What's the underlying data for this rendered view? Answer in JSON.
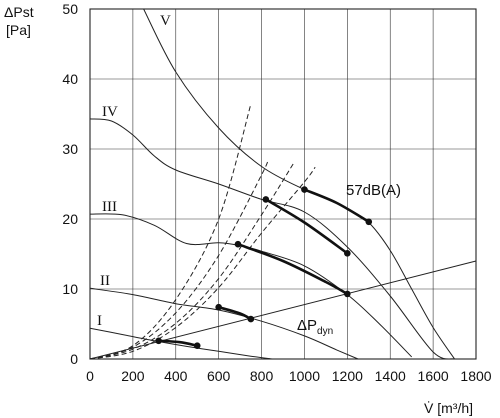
{
  "chart_data": {
    "type": "line",
    "title": "",
    "xlabel": "V̇ [m³/h]",
    "ylabel_line1": "ΔPst",
    "ylabel_line2": "[Pa]",
    "xlim": [
      0,
      1800
    ],
    "ylim": [
      0,
      50
    ],
    "x_ticks": [
      "0",
      "200",
      "400",
      "600",
      "800",
      "1000",
      "1200",
      "1400",
      "1600",
      "1800"
    ],
    "y_ticks": [
      "0",
      "10",
      "20",
      "30",
      "40",
      "50"
    ],
    "grid": true,
    "fan_curves": [
      {
        "name": "I",
        "x": [
          0,
          150,
          300,
          450,
          600,
          750,
          850
        ],
        "y": [
          4.4,
          3.5,
          2.6,
          1.8,
          1.1,
          0.4,
          0
        ]
      },
      {
        "name": "II",
        "x": [
          0,
          200,
          400,
          600,
          800,
          1000,
          1150,
          1250
        ],
        "y": [
          10.1,
          9.2,
          7.9,
          7.0,
          5.4,
          3.3,
          1.3,
          0
        ]
      },
      {
        "name": "III",
        "x": [
          0,
          150,
          300,
          450,
          600,
          700,
          800,
          1000,
          1200,
          1350,
          1500
        ],
        "y": [
          20.7,
          20.6,
          19.1,
          16.5,
          16.6,
          16.2,
          15.4,
          13.3,
          9.2,
          5.0,
          0.3
        ]
      },
      {
        "name": "IV",
        "x": [
          0,
          100,
          200,
          300,
          400,
          600,
          800,
          1000,
          1200,
          1400,
          1600,
          1700
        ],
        "y": [
          34.3,
          34.0,
          32.0,
          29.0,
          27.0,
          25.0,
          22.8,
          21.0,
          16.0,
          9.0,
          1.0,
          0
        ]
      },
      {
        "name": "V",
        "x": [
          250,
          400,
          600,
          800,
          1000,
          1100,
          1200,
          1300,
          1400,
          1500,
          1600,
          1700
        ],
        "y": [
          50,
          41,
          33,
          27.5,
          24.2,
          23.0,
          21.5,
          19.5,
          15.5,
          10.0,
          4.5,
          0
        ]
      }
    ],
    "system_curves": [
      {
        "x": [
          0,
          200,
          400,
          600,
          750
        ],
        "y": [
          0,
          1.9,
          8.5,
          20,
          36.4
        ]
      },
      {
        "x": [
          0,
          200,
          400,
          600,
          800,
          830
        ],
        "y": [
          0,
          1.7,
          6.6,
          14.8,
          26.3,
          28.5
        ]
      },
      {
        "x": [
          0,
          200,
          400,
          600,
          800,
          950
        ],
        "y": [
          0,
          1.4,
          5.1,
          11.5,
          20.6,
          28.0
        ]
      },
      {
        "x": [
          0,
          200,
          400,
          600,
          800,
          1000,
          1050
        ],
        "y": [
          0,
          1.1,
          4.5,
          10.2,
          18.0,
          25.3,
          27.4
        ]
      }
    ],
    "dynamic_pressure": {
      "name": "ΔPdyn",
      "x": [
        0,
        1800
      ],
      "y": [
        0,
        14
      ]
    },
    "operating_ranges": [
      {
        "x": [
          320,
          420,
          500
        ],
        "y": [
          2.6,
          2.4,
          1.9
        ]
      },
      {
        "x": [
          600,
          700,
          750
        ],
        "y": [
          7.4,
          6.5,
          5.7
        ]
      },
      {
        "x": [
          690,
          900,
          1100,
          1200
        ],
        "y": [
          16.4,
          14.0,
          11.0,
          9.3
        ]
      },
      {
        "x": [
          820,
          1000,
          1200
        ],
        "y": [
          22.8,
          19.5,
          15.1
        ]
      },
      {
        "x": [
          1000,
          1150,
          1300
        ],
        "y": [
          24.2,
          22.3,
          19.6
        ]
      }
    ],
    "operating_points": [
      {
        "x": 320,
        "y": 2.6
      },
      {
        "x": 500,
        "y": 1.9
      },
      {
        "x": 600,
        "y": 7.4
      },
      {
        "x": 750,
        "y": 5.7
      },
      {
        "x": 690,
        "y": 16.4
      },
      {
        "x": 1200,
        "y": 9.3
      },
      {
        "x": 820,
        "y": 22.8
      },
      {
        "x": 1200,
        "y": 15.1
      },
      {
        "x": 1000,
        "y": 24.2
      },
      {
        "x": 1300,
        "y": 19.6
      }
    ],
    "labels": {
      "curve_I": "I",
      "curve_II": "II",
      "curve_III": "III",
      "curve_IV": "IV",
      "curve_V": "V",
      "noise": "57dB(A)",
      "dyn_main": "ΔP",
      "dyn_sub": "dyn"
    }
  }
}
